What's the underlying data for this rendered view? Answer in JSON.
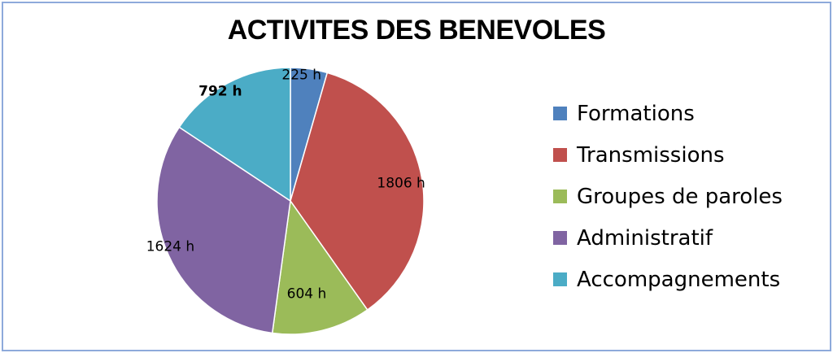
{
  "chart_data": {
    "type": "pie",
    "title": "ACTIVITES DES BENEVOLES",
    "slices": [
      {
        "label": "Formations",
        "value": 225,
        "display": "225 h",
        "color": "#4f81bd"
      },
      {
        "label": "Transmissions",
        "value": 1806,
        "display": "1806 h",
        "color": "#c0504d"
      },
      {
        "label": "Groupes de paroles",
        "value": 604,
        "display": "604 h",
        "color": "#9bbb59"
      },
      {
        "label": "Administratif",
        "value": 1624,
        "display": "1624 h",
        "color": "#8064a2"
      },
      {
        "label": "Accompagnements",
        "value": 792,
        "display": "792 h",
        "color": "#4bacc6",
        "bold": true
      }
    ],
    "legend_position": "right",
    "start_angle": "top, clockwise"
  }
}
